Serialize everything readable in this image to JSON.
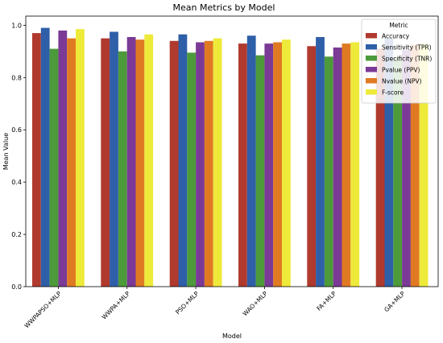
{
  "chart_data": {
    "type": "bar",
    "title": "Mean Metrics by Model",
    "xlabel": "Model",
    "ylabel": "Mean Value",
    "ylim": [
      0,
      1.0
    ],
    "yticks": [
      "0.0",
      "0.2",
      "0.4",
      "0.6",
      "0.8",
      "1.0"
    ],
    "grid": false,
    "legend": {
      "title": "Metric",
      "placement": "top-right"
    },
    "categories": [
      "WWPAPSO+MLP",
      "WWPA+MLP",
      "PSO+MLP",
      "WAO+MLP",
      "FA+MLP",
      "GA+MLP"
    ],
    "series": [
      {
        "name": "Accuracy",
        "color": "#b03a2e",
        "values": [
          0.97,
          0.95,
          0.94,
          0.93,
          0.92,
          0.91
        ]
      },
      {
        "name": "Sensitivity (TPR)",
        "color": "#2e5fa8",
        "values": [
          0.99,
          0.975,
          0.965,
          0.96,
          0.955,
          0.95
        ]
      },
      {
        "name": "Specificity (TNR)",
        "color": "#4c9a3a",
        "values": [
          0.91,
          0.9,
          0.895,
          0.885,
          0.88,
          0.875
        ]
      },
      {
        "name": "Pvalue (PPV)",
        "color": "#7b3a96",
        "values": [
          0.98,
          0.955,
          0.935,
          0.93,
          0.915,
          0.905
        ]
      },
      {
        "name": "Nvalue (NPV)",
        "color": "#e07a22",
        "values": [
          0.95,
          0.945,
          0.94,
          0.935,
          0.93,
          0.925
        ]
      },
      {
        "name": "F-score",
        "color": "#eeea3a",
        "values": [
          0.985,
          0.965,
          0.95,
          0.945,
          0.935,
          0.93
        ]
      }
    ]
  }
}
